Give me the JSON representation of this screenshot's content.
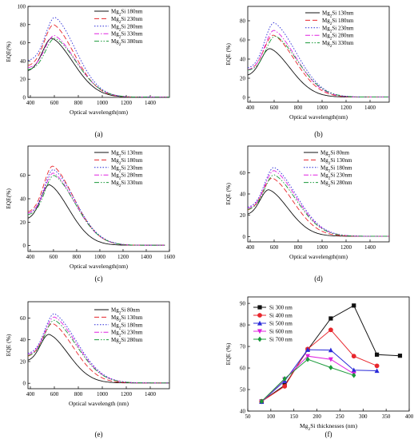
{
  "colors": {
    "black": "#111111",
    "red": "#e8262c",
    "blue": "#2a2ad8",
    "magenta": "#e020e0",
    "green": "#1a9a3a"
  },
  "chart_data": [
    {
      "panel": "(a)",
      "type": "line",
      "xlabel": "Optical wavelength(nm)",
      "ylabel": "EQE(%)",
      "xlim": [
        380,
        1560
      ],
      "ylim": [
        0,
        100
      ],
      "xticks": [
        400,
        600,
        800,
        1000,
        1200,
        1400
      ],
      "yticks": [
        0,
        20,
        40,
        60,
        80,
        100
      ],
      "legend": "top-right",
      "series": [
        {
          "name": "Mg₂Si 180nm",
          "color": "black",
          "dash": "",
          "peak_x": 580,
          "peak_y": 65,
          "start_y": 28,
          "sigma_l": 110,
          "sigma_r": 250
        },
        {
          "name": "Mg₂Si 230nm",
          "color": "red",
          "dash": "6,3",
          "peak_x": 595,
          "peak_y": 80,
          "start_y": 34,
          "sigma_l": 110,
          "sigma_r": 245
        },
        {
          "name": "Mg₂Si 280nm",
          "color": "blue",
          "dash": "1.5,2",
          "peak_x": 605,
          "peak_y": 88,
          "start_y": 40,
          "sigma_l": 110,
          "sigma_r": 245
        },
        {
          "name": "Mg₂Si 330nm",
          "color": "magenta",
          "dash": "6,2,1.5,2",
          "peak_x": 600,
          "peak_y": 68,
          "start_y": 32,
          "sigma_l": 110,
          "sigma_r": 255
        },
        {
          "name": "Mg₂Si 380nm",
          "color": "green",
          "dash": "6,2,1.5,2,1.5,2",
          "peak_x": 605,
          "peak_y": 65,
          "start_y": 30,
          "sigma_l": 110,
          "sigma_r": 255
        }
      ]
    },
    {
      "panel": "(b)",
      "type": "line",
      "xlabel": "Optical wavelength(nm)",
      "ylabel": "EQE (%)",
      "xlim": [
        380,
        1560
      ],
      "ylim": [
        -5,
        95
      ],
      "xticks": [
        400,
        600,
        800,
        1000,
        1200,
        1400
      ],
      "yticks": [
        0,
        20,
        40,
        60,
        80
      ],
      "legend": "top-right",
      "series": [
        {
          "name": "Mg₂Si 130nm",
          "color": "black",
          "dash": "",
          "peak_x": 565,
          "peak_y": 51,
          "start_y": 22,
          "sigma_l": 105,
          "sigma_r": 240
        },
        {
          "name": "Mg₂Si 180nm",
          "color": "red",
          "dash": "6,3",
          "peak_x": 595,
          "peak_y": 65,
          "start_y": 28,
          "sigma_l": 110,
          "sigma_r": 255
        },
        {
          "name": "Mg₂Si 230nm",
          "color": "blue",
          "dash": "1.5,2",
          "peak_x": 600,
          "peak_y": 78,
          "start_y": 30,
          "sigma_l": 110,
          "sigma_r": 265
        },
        {
          "name": "Mg₂Si 280nm",
          "color": "magenta",
          "dash": "6,2,1.5,2",
          "peak_x": 600,
          "peak_y": 70,
          "start_y": 28,
          "sigma_l": 110,
          "sigma_r": 260
        },
        {
          "name": "Mg₂Si 330nm",
          "color": "green",
          "dash": "6,2,1.5,2,1.5,2",
          "peak_x": 610,
          "peak_y": 64,
          "start_y": 28,
          "sigma_l": 110,
          "sigma_r": 265
        }
      ]
    },
    {
      "panel": "(c)",
      "type": "line",
      "xlabel": "Optical wavelength(nm)",
      "ylabel": "EQE(%)",
      "xlim": [
        380,
        1600
      ],
      "ylim": [
        -5,
        85
      ],
      "xticks": [
        400,
        600,
        800,
        1000,
        1200,
        1400,
        1600
      ],
      "yticks": [
        0,
        20,
        40,
        60
      ],
      "legend": "top-right",
      "series": [
        {
          "name": "Mg₂Si 130nm",
          "color": "black",
          "dash": "",
          "peak_x": 565,
          "peak_y": 52,
          "start_y": 22,
          "sigma_l": 105,
          "sigma_r": 240
        },
        {
          "name": "Mg₂Si 180nm",
          "color": "red",
          "dash": "6,3",
          "peak_x": 595,
          "peak_y": 68,
          "start_y": 28,
          "sigma_l": 110,
          "sigma_r": 260
        },
        {
          "name": "Mg₂Si 230nm",
          "color": "blue",
          "dash": "1.5,2",
          "peak_x": 600,
          "peak_y": 65,
          "start_y": 27,
          "sigma_l": 110,
          "sigma_r": 265
        },
        {
          "name": "Mg₂Si 280nm",
          "color": "magenta",
          "dash": "6,2,1.5,2",
          "peak_x": 600,
          "peak_y": 62,
          "start_y": 27,
          "sigma_l": 110,
          "sigma_r": 262
        },
        {
          "name": "Mg₂Si 330nm",
          "color": "green",
          "dash": "6,2,1.5,2,1.5,2",
          "peak_x": 605,
          "peak_y": 60,
          "start_y": 26,
          "sigma_l": 110,
          "sigma_r": 262
        }
      ]
    },
    {
      "panel": "(d)",
      "type": "line",
      "xlabel": "Optical wavelength(nm)",
      "ylabel": "EQE (%)",
      "xlim": [
        380,
        1560
      ],
      "ylim": [
        -5,
        85
      ],
      "xticks": [
        400,
        600,
        800,
        1000,
        1200,
        1400
      ],
      "yticks": [
        0,
        20,
        40,
        60
      ],
      "legend": "top-right",
      "series": [
        {
          "name": "Mg₂Si 80nm",
          "color": "black",
          "dash": "",
          "peak_x": 555,
          "peak_y": 44,
          "start_y": 20,
          "sigma_l": 100,
          "sigma_r": 230
        },
        {
          "name": "Mg₂Si 130nm",
          "color": "red",
          "dash": "6,3",
          "peak_x": 585,
          "peak_y": 55,
          "start_y": 24,
          "sigma_l": 110,
          "sigma_r": 250
        },
        {
          "name": "Mg₂Si 180nm",
          "color": "blue",
          "dash": "1.5,2",
          "peak_x": 600,
          "peak_y": 65,
          "start_y": 27,
          "sigma_l": 110,
          "sigma_r": 265
        },
        {
          "name": "Mg₂Si 230nm",
          "color": "magenta",
          "dash": "6,2,1.5,2",
          "peak_x": 600,
          "peak_y": 62,
          "start_y": 26,
          "sigma_l": 110,
          "sigma_r": 262
        },
        {
          "name": "Mg₂Si 280nm",
          "color": "green",
          "dash": "6,2,1.5,2,1.5,2",
          "peak_x": 600,
          "peak_y": 58,
          "start_y": 25,
          "sigma_l": 110,
          "sigma_r": 262
        }
      ]
    },
    {
      "panel": "(e)",
      "type": "line",
      "xlabel": "Optical wavelength (nm)",
      "ylabel": "EQE (%)",
      "xlim": [
        380,
        1560
      ],
      "ylim": [
        -5,
        75
      ],
      "xticks": [
        400,
        600,
        800,
        1000,
        1200,
        1400
      ],
      "yticks": [
        0,
        20,
        40,
        60
      ],
      "legend": "top-right",
      "series": [
        {
          "name": "Mg₂Si 80nm",
          "color": "black",
          "dash": "",
          "peak_x": 555,
          "peak_y": 45,
          "start_y": 20,
          "sigma_l": 100,
          "sigma_r": 230
        },
        {
          "name": "Mg₂Si 130nm",
          "color": "red",
          "dash": "6,3",
          "peak_x": 585,
          "peak_y": 55,
          "start_y": 24,
          "sigma_l": 110,
          "sigma_r": 250
        },
        {
          "name": "Mg₂Si 180nm",
          "color": "blue",
          "dash": "1.5,2",
          "peak_x": 600,
          "peak_y": 64,
          "start_y": 27,
          "sigma_l": 110,
          "sigma_r": 268
        },
        {
          "name": "Mg₂Si 230nm",
          "color": "magenta",
          "dash": "6,2,1.5,2",
          "peak_x": 600,
          "peak_y": 61,
          "start_y": 26,
          "sigma_l": 110,
          "sigma_r": 265
        },
        {
          "name": "Mg₂Si 280nm",
          "color": "green",
          "dash": "6,2,1.5,2,1.5,2",
          "peak_x": 600,
          "peak_y": 58,
          "start_y": 25,
          "sigma_l": 110,
          "sigma_r": 265
        }
      ]
    },
    {
      "panel": "(f)",
      "type": "line",
      "xlabel": "Mg₂Si thicknesses (nm)",
      "ylabel": "EQE (%)",
      "xlim": [
        50,
        400
      ],
      "ylim": [
        40,
        93
      ],
      "xticks": [
        50,
        100,
        150,
        200,
        250,
        300,
        350,
        400
      ],
      "yticks": [
        40,
        50,
        60,
        70,
        80,
        90
      ],
      "legend": "top-left",
      "series": [
        {
          "name": "Si 300 nm",
          "color": "black",
          "marker": "square",
          "x": [
            80,
            130,
            180,
            230,
            280,
            330,
            380
          ],
          "y": [
            44.5,
            52,
            68.5,
            83,
            89,
            66.2,
            65.7
          ]
        },
        {
          "name": "Si 400 nm",
          "color": "red",
          "marker": "circle",
          "x": [
            80,
            130,
            180,
            230,
            280,
            330
          ],
          "y": [
            44.5,
            51.5,
            68.8,
            77.7,
            65.5,
            61
          ]
        },
        {
          "name": "Si 500 nm",
          "color": "blue",
          "marker": "triangle-up",
          "x": [
            80,
            130,
            180,
            230,
            280,
            330
          ],
          "y": [
            44.3,
            54,
            68.5,
            68.3,
            59,
            58.7
          ]
        },
        {
          "name": "Si 600 nm",
          "color": "magenta",
          "marker": "triangle-down",
          "x": [
            80,
            130,
            180,
            230,
            280
          ],
          "y": [
            44.3,
            54.8,
            65.5,
            64,
            57.3
          ]
        },
        {
          "name": "Si 700 nm",
          "color": "green",
          "marker": "diamond",
          "x": [
            80,
            130,
            180,
            230,
            280
          ],
          "y": [
            44.5,
            55,
            64,
            60.2,
            56.6
          ]
        }
      ]
    }
  ]
}
